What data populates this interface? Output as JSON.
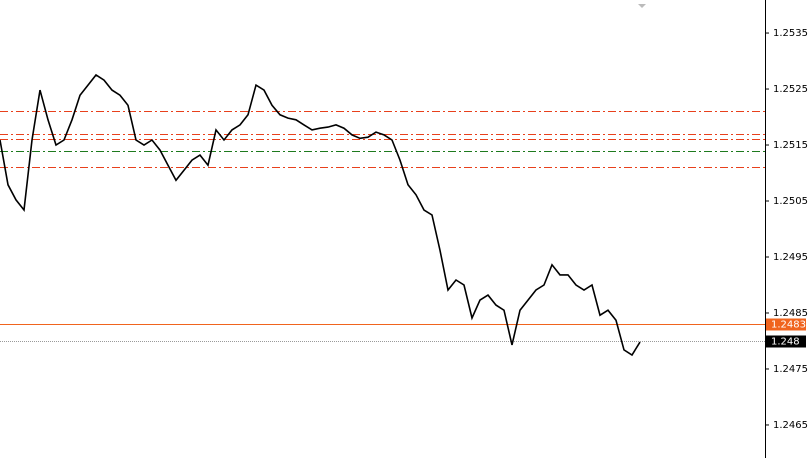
{
  "chart_data": {
    "type": "line",
    "color": "#000000",
    "values": [
      1.25159,
      1.25079,
      1.25052,
      1.25034,
      1.25159,
      1.25248,
      1.25195,
      1.2515,
      1.25159,
      1.25195,
      1.25239,
      1.25257,
      1.25275,
      1.25266,
      1.25248,
      1.25239,
      1.25221,
      1.25159,
      1.2515,
      1.25159,
      1.25141,
      1.25114,
      1.25087,
      1.25105,
      1.25123,
      1.25132,
      1.25114,
      1.25177,
      1.25159,
      1.25177,
      1.25186,
      1.25204,
      1.25257,
      1.25248,
      1.25221,
      1.25204,
      1.25198,
      1.25195,
      1.25186,
      1.25177,
      1.2518,
      1.25182,
      1.25186,
      1.2518,
      1.25168,
      1.25162,
      1.25164,
      1.25173,
      1.25168,
      1.25159,
      1.25123,
      1.25079,
      1.25061,
      1.25034,
      1.25025,
      1.24962,
      1.24891,
      1.24909,
      1.249,
      1.24841,
      1.24873,
      1.24882,
      1.24864,
      1.24855,
      1.24793,
      1.24855,
      1.24873,
      1.24891,
      1.249,
      1.24936,
      1.24918,
      1.24918,
      1.249,
      1.24891,
      1.249,
      1.24846,
      1.24855,
      1.24837,
      1.24784,
      1.24775,
      1.24798
    ],
    "ylim": [
      1.24591,
      1.25409
    ],
    "yticks": [
      1.2535,
      1.2525,
      1.2515,
      1.2505,
      1.2495,
      1.2485,
      1.2475,
      1.2465
    ],
    "levels": [
      {
        "value": 1.2521,
        "color": "#e8401c",
        "style": "dashdot"
      },
      {
        "value": 1.2517,
        "color": "#e8401c",
        "style": "dashdot"
      },
      {
        "value": 1.2516,
        "color": "#e8401c",
        "style": "dashdot"
      },
      {
        "value": 1.2514,
        "color": "#1e7a1e",
        "style": "dashdot"
      },
      {
        "value": 1.2511,
        "color": "#e8401c",
        "style": "dashdot"
      },
      {
        "value": 1.2483,
        "color": "#f0641e",
        "style": "solid",
        "tag": true
      },
      {
        "value": 1.248,
        "color": "#9a9a9a",
        "style": "dotted",
        "tag": true
      }
    ]
  }
}
